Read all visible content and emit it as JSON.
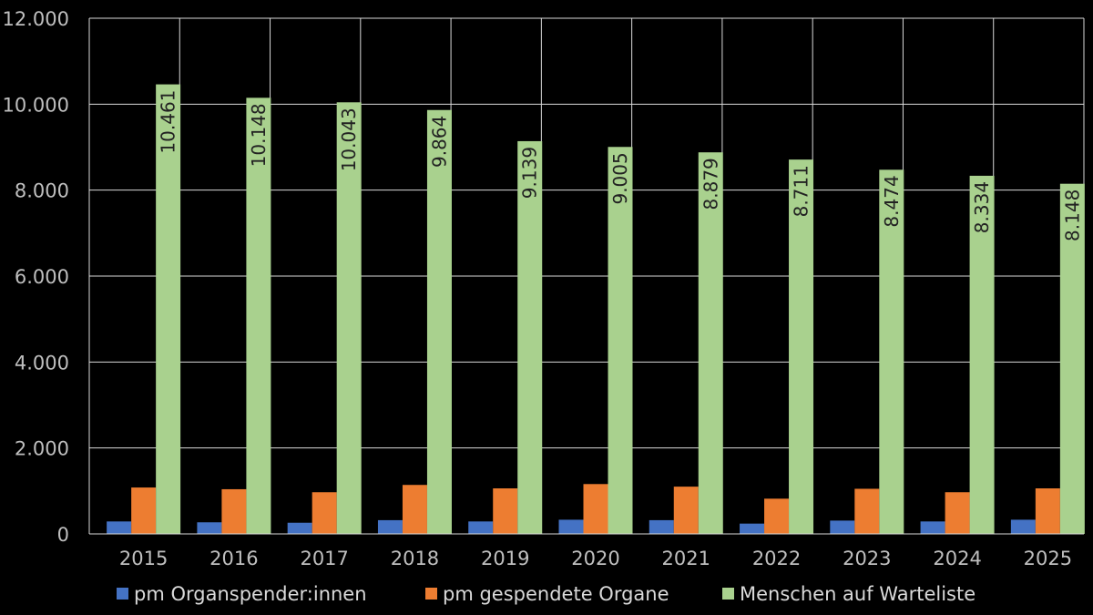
{
  "chart_data": {
    "type": "bar",
    "categories": [
      "2015",
      "2016",
      "2017",
      "2018",
      "2019",
      "2020",
      "2021",
      "2022",
      "2023",
      "2024",
      "2025"
    ],
    "series": [
      {
        "name": "pm Organspender:innen",
        "color": "#4472c4",
        "values": [
          290,
          270,
          260,
          320,
          290,
          330,
          320,
          240,
          310,
          290,
          330
        ]
      },
      {
        "name": "pm gespendete Organe",
        "color": "#ed7d31",
        "values": [
          1080,
          1040,
          970,
          1140,
          1060,
          1160,
          1100,
          820,
          1050,
          970,
          1060
        ]
      },
      {
        "name": "Menschen auf Warteliste",
        "color": "#a9d18e",
        "values": [
          10461,
          10148,
          10043,
          9864,
          9139,
          9005,
          8879,
          8711,
          8474,
          8334,
          8148
        ],
        "labels": [
          "10.461",
          "10.148",
          "10.043",
          "9.864",
          "9.139",
          "9.005",
          "8.879",
          "8.711",
          "8.474",
          "8.334",
          "8.148"
        ]
      }
    ],
    "ylim": [
      0,
      12000
    ],
    "y_ticks": [
      0,
      2000,
      4000,
      6000,
      8000,
      10000,
      12000
    ],
    "y_tick_labels": [
      "0",
      "2.000",
      "4.000",
      "6.000",
      "8.000",
      "10.000",
      "12.000"
    ],
    "grid": true,
    "legend": "bottom",
    "title": "",
    "xlabel": "",
    "ylabel": ""
  }
}
